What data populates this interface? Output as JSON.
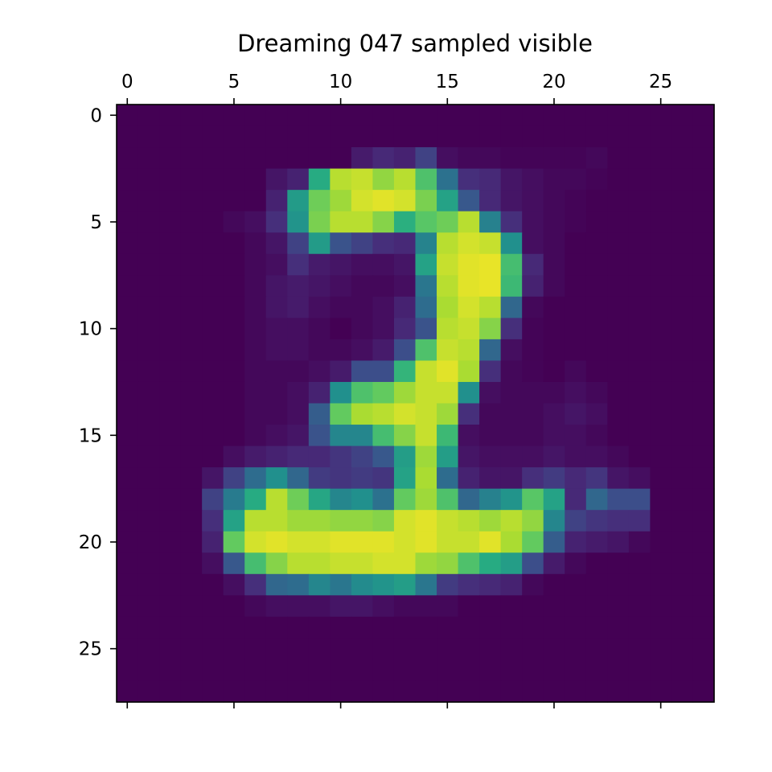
{
  "chart_data": {
    "type": "heatmap",
    "title": "Dreaming 047 sampled visible",
    "xlabel": "",
    "ylabel": "",
    "colormap": "viridis",
    "value_range": [
      0,
      1
    ],
    "grid": false,
    "rows": 28,
    "cols": 28,
    "xlim": [
      -0.5,
      27.5
    ],
    "ylim": [
      27.5,
      -0.5
    ],
    "x_ticks": [
      0,
      5,
      10,
      15,
      20,
      25
    ],
    "y_ticks": [
      0,
      5,
      10,
      15,
      20,
      25
    ],
    "x_tick_labels": [
      "0",
      "5",
      "10",
      "15",
      "20",
      "25"
    ],
    "y_tick_labels": [
      "0",
      "5",
      "10",
      "15",
      "20",
      "25"
    ],
    "x_ticks_on": "top",
    "values": [
      [
        0,
        0,
        0,
        0,
        0,
        0,
        0,
        0,
        0,
        0,
        0,
        0,
        0,
        0,
        0,
        0,
        0,
        0,
        0,
        0,
        0,
        0,
        0,
        0,
        0,
        0,
        0,
        0
      ],
      [
        0,
        0,
        0,
        0,
        0,
        0,
        0,
        0,
        0,
        0,
        0,
        0,
        0,
        0,
        0,
        0,
        0,
        0,
        0,
        0,
        0,
        0,
        0,
        0,
        0,
        0,
        0,
        0
      ],
      [
        0,
        0,
        0,
        0,
        0,
        0,
        0,
        0,
        0,
        0,
        0,
        0.08,
        0.12,
        0.1,
        0.2,
        0.04,
        0.02,
        0.02,
        0.01,
        0.01,
        0.01,
        0.01,
        0.02,
        0,
        0,
        0,
        0,
        0
      ],
      [
        0,
        0,
        0,
        0,
        0,
        0,
        0,
        0.06,
        0.1,
        0.62,
        0.9,
        0.92,
        0.84,
        0.9,
        0.72,
        0.38,
        0.14,
        0.12,
        0.06,
        0.04,
        0.02,
        0.02,
        0.01,
        0,
        0,
        0,
        0,
        0
      ],
      [
        0,
        0,
        0,
        0,
        0,
        0,
        0,
        0.1,
        0.55,
        0.78,
        0.86,
        0.94,
        0.96,
        0.94,
        0.8,
        0.58,
        0.28,
        0.12,
        0.06,
        0.04,
        0.02,
        0.01,
        0,
        0,
        0,
        0,
        0,
        0
      ],
      [
        0,
        0,
        0,
        0,
        0,
        0.02,
        0.04,
        0.14,
        0.52,
        0.8,
        0.9,
        0.9,
        0.82,
        0.64,
        0.74,
        0.78,
        0.9,
        0.44,
        0.14,
        0.04,
        0.02,
        0.01,
        0,
        0,
        0,
        0,
        0,
        0
      ],
      [
        0,
        0,
        0,
        0,
        0,
        0,
        0.02,
        0.06,
        0.2,
        0.55,
        0.26,
        0.2,
        0.14,
        0.12,
        0.45,
        0.9,
        0.94,
        0.92,
        0.5,
        0.04,
        0.02,
        0,
        0,
        0,
        0,
        0,
        0,
        0
      ],
      [
        0,
        0,
        0,
        0,
        0,
        0,
        0.02,
        0.04,
        0.14,
        0.08,
        0.06,
        0.04,
        0.04,
        0.06,
        0.58,
        0.92,
        0.96,
        0.97,
        0.7,
        0.12,
        0.02,
        0,
        0,
        0,
        0,
        0,
        0,
        0
      ],
      [
        0,
        0,
        0,
        0,
        0,
        0,
        0.02,
        0.06,
        0.08,
        0.06,
        0.04,
        0.02,
        0.02,
        0.04,
        0.4,
        0.9,
        0.96,
        0.97,
        0.68,
        0.1,
        0.02,
        0,
        0,
        0,
        0,
        0,
        0,
        0
      ],
      [
        0,
        0,
        0,
        0,
        0,
        0,
        0.02,
        0.06,
        0.08,
        0.04,
        0.02,
        0.02,
        0.04,
        0.1,
        0.36,
        0.88,
        0.94,
        0.9,
        0.34,
        0.02,
        0,
        0,
        0,
        0,
        0,
        0,
        0,
        0
      ],
      [
        0,
        0,
        0,
        0,
        0,
        0,
        0.02,
        0.04,
        0.04,
        0.02,
        0,
        0.02,
        0.04,
        0.12,
        0.26,
        0.9,
        0.92,
        0.82,
        0.14,
        0.01,
        0,
        0,
        0,
        0,
        0,
        0,
        0,
        0
      ],
      [
        0,
        0,
        0,
        0,
        0,
        0,
        0.02,
        0.04,
        0.04,
        0.02,
        0.02,
        0.04,
        0.08,
        0.24,
        0.72,
        0.92,
        0.9,
        0.34,
        0.04,
        0.01,
        0,
        0,
        0,
        0,
        0,
        0,
        0,
        0
      ],
      [
        0,
        0,
        0,
        0,
        0,
        0,
        0.02,
        0.02,
        0.02,
        0.04,
        0.08,
        0.24,
        0.24,
        0.66,
        0.92,
        0.96,
        0.88,
        0.14,
        0.02,
        0.01,
        0,
        0.02,
        0,
        0,
        0,
        0,
        0,
        0
      ],
      [
        0,
        0,
        0,
        0,
        0,
        0,
        0.02,
        0.02,
        0.04,
        0.1,
        0.5,
        0.72,
        0.76,
        0.86,
        0.92,
        0.92,
        0.5,
        0.04,
        0.02,
        0.02,
        0.02,
        0.04,
        0.02,
        0,
        0,
        0,
        0,
        0
      ],
      [
        0,
        0,
        0,
        0,
        0,
        0,
        0.02,
        0.02,
        0.04,
        0.3,
        0.76,
        0.88,
        0.9,
        0.94,
        0.92,
        0.86,
        0.14,
        0.02,
        0.02,
        0.02,
        0.04,
        0.06,
        0.04,
        0,
        0,
        0,
        0,
        0
      ],
      [
        0,
        0,
        0,
        0,
        0,
        0,
        0.02,
        0.04,
        0.06,
        0.26,
        0.46,
        0.46,
        0.7,
        0.82,
        0.92,
        0.68,
        0.04,
        0.02,
        0.02,
        0.02,
        0.04,
        0.04,
        0.02,
        0,
        0,
        0,
        0,
        0
      ],
      [
        0,
        0,
        0,
        0,
        0,
        0.04,
        0.08,
        0.1,
        0.12,
        0.12,
        0.16,
        0.2,
        0.28,
        0.56,
        0.86,
        0.56,
        0.06,
        0.04,
        0.04,
        0.04,
        0.06,
        0.04,
        0.04,
        0.02,
        0,
        0,
        0,
        0
      ],
      [
        0,
        0,
        0,
        0,
        0.06,
        0.2,
        0.36,
        0.5,
        0.34,
        0.18,
        0.16,
        0.18,
        0.16,
        0.58,
        0.88,
        0.36,
        0.1,
        0.06,
        0.06,
        0.14,
        0.18,
        0.12,
        0.16,
        0.06,
        0.04,
        0,
        0,
        0
      ],
      [
        0,
        0,
        0,
        0,
        0.2,
        0.42,
        0.62,
        0.9,
        0.78,
        0.6,
        0.46,
        0.5,
        0.38,
        0.76,
        0.86,
        0.72,
        0.34,
        0.44,
        0.52,
        0.74,
        0.58,
        0.12,
        0.34,
        0.24,
        0.24,
        0,
        0,
        0
      ],
      [
        0,
        0,
        0,
        0,
        0.14,
        0.58,
        0.9,
        0.9,
        0.86,
        0.86,
        0.84,
        0.84,
        0.82,
        0.94,
        0.96,
        0.92,
        0.9,
        0.86,
        0.9,
        0.84,
        0.46,
        0.2,
        0.16,
        0.14,
        0.14,
        0,
        0,
        0
      ],
      [
        0,
        0,
        0,
        0,
        0.1,
        0.76,
        0.94,
        0.96,
        0.94,
        0.94,
        0.96,
        0.96,
        0.96,
        0.94,
        0.96,
        0.92,
        0.92,
        0.96,
        0.88,
        0.76,
        0.3,
        0.1,
        0.08,
        0.06,
        0.02,
        0,
        0,
        0
      ],
      [
        0,
        0,
        0,
        0,
        0.04,
        0.28,
        0.7,
        0.82,
        0.9,
        0.9,
        0.92,
        0.92,
        0.94,
        0.94,
        0.86,
        0.84,
        0.72,
        0.62,
        0.56,
        0.24,
        0.08,
        0.02,
        0,
        0,
        0,
        0,
        0,
        0
      ],
      [
        0,
        0,
        0,
        0,
        0,
        0.04,
        0.14,
        0.34,
        0.36,
        0.46,
        0.4,
        0.48,
        0.52,
        0.56,
        0.4,
        0.18,
        0.14,
        0.12,
        0.1,
        0.02,
        0,
        0,
        0,
        0,
        0,
        0,
        0,
        0
      ],
      [
        0,
        0,
        0,
        0,
        0,
        0,
        0.02,
        0.04,
        0.04,
        0.04,
        0.06,
        0.06,
        0.04,
        0.02,
        0.02,
        0.02,
        0,
        0,
        0,
        0,
        0,
        0,
        0,
        0,
        0,
        0,
        0,
        0
      ],
      [
        0,
        0,
        0,
        0,
        0,
        0,
        0,
        0,
        0,
        0,
        0,
        0,
        0,
        0,
        0,
        0,
        0,
        0,
        0,
        0,
        0,
        0,
        0,
        0,
        0,
        0,
        0,
        0
      ],
      [
        0,
        0,
        0,
        0,
        0,
        0,
        0,
        0,
        0,
        0,
        0,
        0,
        0,
        0,
        0,
        0,
        0,
        0,
        0,
        0,
        0,
        0,
        0,
        0,
        0,
        0,
        0,
        0
      ],
      [
        0,
        0,
        0,
        0,
        0,
        0,
        0,
        0,
        0,
        0,
        0,
        0,
        0,
        0,
        0,
        0,
        0,
        0,
        0,
        0,
        0,
        0,
        0,
        0,
        0,
        0,
        0,
        0
      ],
      [
        0,
        0,
        0,
        0,
        0,
        0,
        0,
        0,
        0,
        0,
        0,
        0,
        0,
        0,
        0,
        0,
        0,
        0,
        0,
        0,
        0,
        0,
        0,
        0,
        0,
        0,
        0,
        0
      ]
    ]
  }
}
